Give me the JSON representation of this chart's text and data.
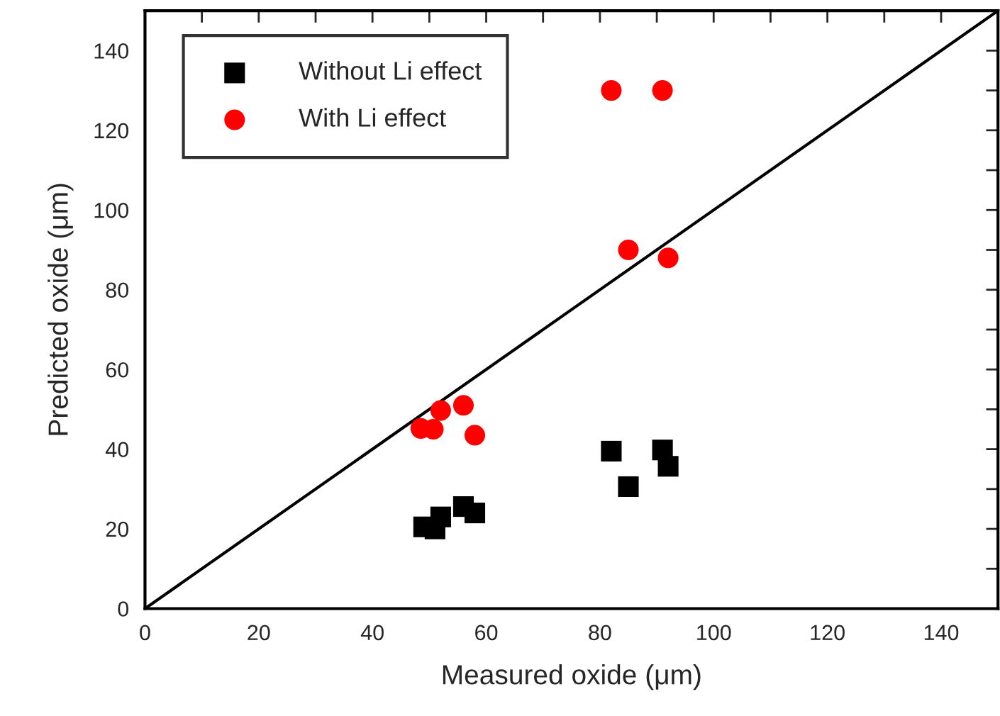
{
  "chart_data": {
    "type": "scatter",
    "xlabel": "Measured oxide (μm)",
    "ylabel": "Predicted oxide (μm)",
    "xlim": [
      0,
      150
    ],
    "ylim": [
      0,
      150
    ],
    "xticks": [
      0,
      {
        "value": 10,
        "label": null
      },
      20,
      {
        "value": 30,
        "label": null
      },
      40,
      {
        "value": 50,
        "label": null
      },
      60,
      {
        "value": 70,
        "label": null
      },
      80,
      {
        "value": 90,
        "label": null
      },
      100,
      {
        "value": 110,
        "label": null
      },
      120,
      {
        "value": 130,
        "label": null
      },
      140
    ],
    "yticks": [
      0,
      {
        "value": 10,
        "label": null
      },
      20,
      {
        "value": 30,
        "label": null
      },
      40,
      {
        "value": 50,
        "label": null
      },
      60,
      {
        "value": 70,
        "label": null
      },
      80,
      {
        "value": 90,
        "label": null
      },
      100,
      {
        "value": 110,
        "label": null
      },
      120,
      {
        "value": 130,
        "label": null
      },
      140
    ],
    "series": [
      {
        "name": "Without Li effect",
        "color": "#000000",
        "marker": "square",
        "x": [
          49,
          51,
          52,
          56,
          58,
          82,
          91,
          92,
          85
        ],
        "values": [
          20.5,
          20,
          23,
          25.6,
          24,
          39.5,
          39.8,
          35.7,
          30.6
        ]
      },
      {
        "name": "With Li effect",
        "color": "#ff0000",
        "marker": "circle",
        "x": [
          82,
          91,
          85,
          92,
          52,
          56,
          48.5,
          50.7,
          58
        ],
        "values": [
          130,
          130,
          90,
          88,
          49.7,
          51,
          45.2,
          45,
          43.5
        ]
      },
      {
        "type": "line",
        "color": "#000000",
        "marker": "none",
        "line_style": "solid",
        "x": [
          0,
          150
        ],
        "values": [
          0,
          150
        ]
      }
    ],
    "legend": "top left",
    "grid": false
  }
}
